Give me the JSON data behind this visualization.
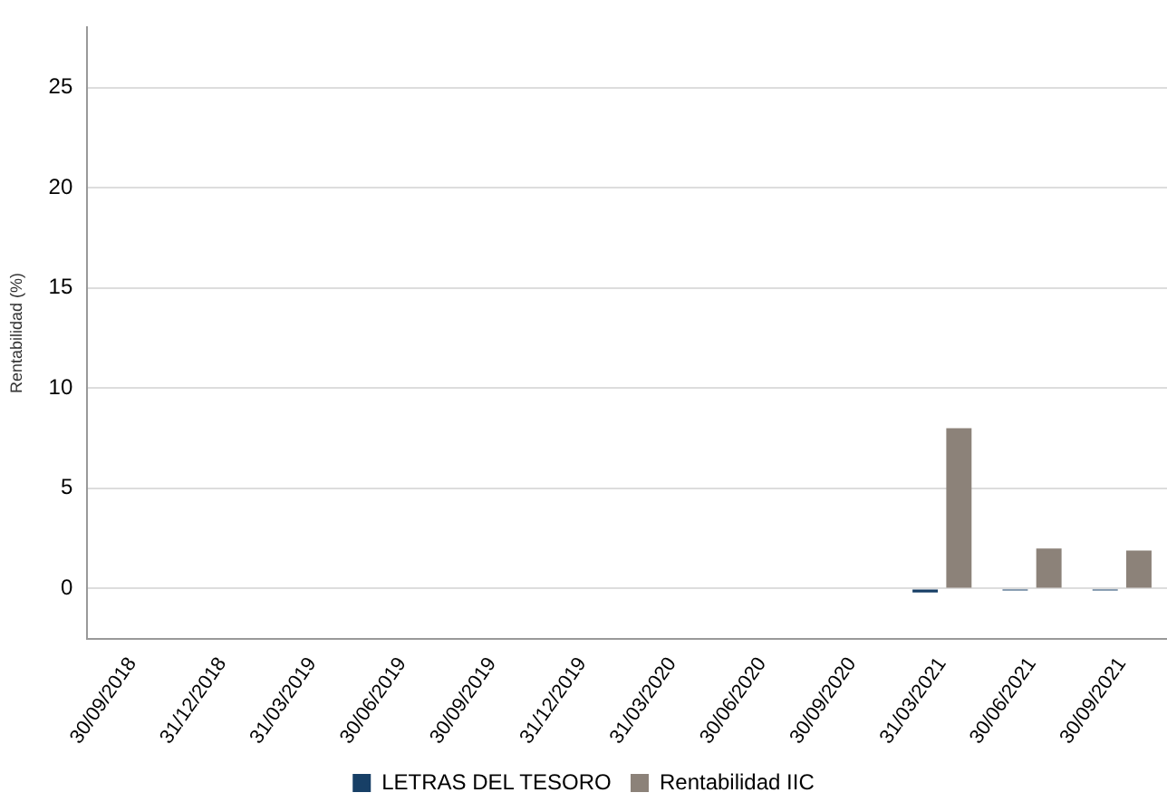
{
  "chart_data": {
    "type": "bar",
    "ylabel": "Rentabilidad (%)",
    "categories": [
      "30/09/2018",
      "31/12/2018",
      "31/03/2019",
      "30/06/2019",
      "30/09/2019",
      "31/12/2019",
      "31/03/2020",
      "30/06/2020",
      "30/09/2020",
      "31/03/2021",
      "30/06/2021",
      "30/09/2021"
    ],
    "series": [
      {
        "name": "LETRAS DEL TESORO",
        "color": "#173f66",
        "values": [
          null,
          null,
          null,
          null,
          null,
          null,
          null,
          null,
          null,
          -0.2,
          -0.1,
          -0.1
        ]
      },
      {
        "name": "Rentabilidad IIC",
        "color": "#8c8279",
        "values": [
          null,
          null,
          null,
          null,
          null,
          null,
          null,
          null,
          null,
          8.0,
          2.0,
          1.9
        ]
      }
    ],
    "ylim": [
      -2.5,
      28
    ],
    "yticks": [
      0,
      5,
      10,
      15,
      20,
      25
    ],
    "grid": "y",
    "legend": "bottom"
  }
}
